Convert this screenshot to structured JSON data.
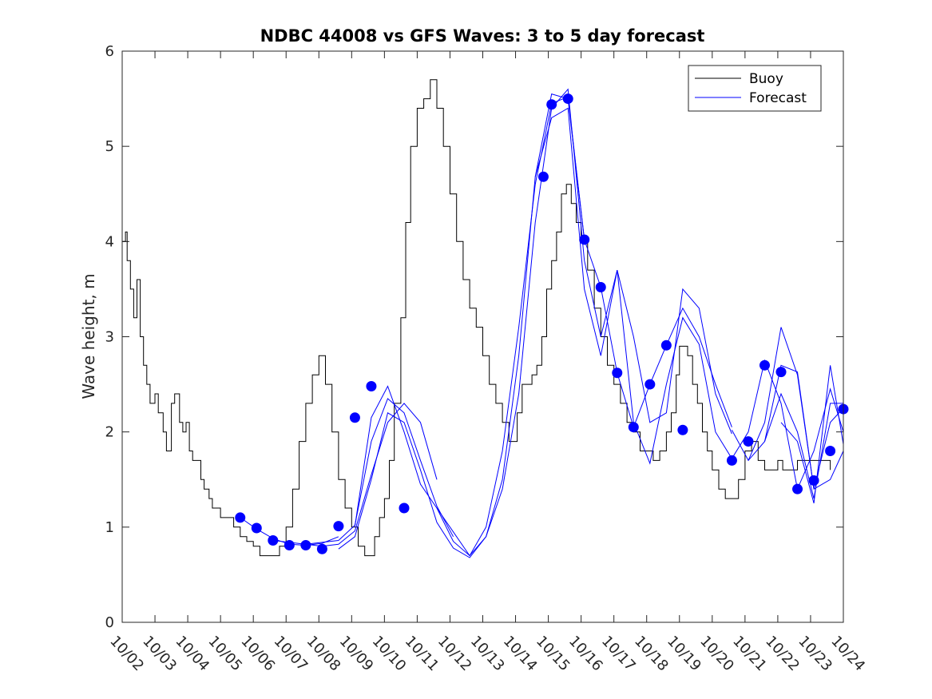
{
  "chart_data": {
    "type": "line",
    "title": "NDBC 44008 vs GFS Waves: 3 to 5 day forecast",
    "xlabel": "",
    "ylabel": "Wave height, m",
    "xlim": [
      0,
      22
    ],
    "ylim": [
      0,
      6
    ],
    "x_tick_labels": [
      "10/02",
      "10/03",
      "10/04",
      "10/05",
      "10/06",
      "10/07",
      "10/08",
      "10/09",
      "10/10",
      "10/11",
      "10/12",
      "10/13",
      "10/14",
      "10/15",
      "10/16",
      "10/17",
      "10/18",
      "10/19",
      "10/20",
      "10/21",
      "10/22",
      "10/23",
      "10/24"
    ],
    "y_ticks": [
      0,
      1,
      2,
      3,
      4,
      5,
      6
    ],
    "legend": {
      "position": "top-right",
      "entries": [
        "Buoy",
        "Forecast"
      ]
    },
    "colors": {
      "buoy": "#000000",
      "forecast": "#0000ff",
      "marker": "#0000ff"
    },
    "series": [
      {
        "name": "Buoy",
        "x": [
          0.0,
          0.1,
          0.15,
          0.25,
          0.35,
          0.45,
          0.55,
          0.65,
          0.75,
          0.85,
          1.0,
          1.1,
          1.25,
          1.35,
          1.5,
          1.6,
          1.75,
          1.85,
          1.95,
          2.05,
          2.15,
          2.25,
          2.4,
          2.5,
          2.65,
          2.75,
          2.85,
          3.0,
          3.2,
          3.4,
          3.6,
          3.8,
          4.0,
          4.2,
          4.4,
          4.6,
          4.8,
          5.0,
          5.2,
          5.4,
          5.6,
          5.8,
          6.0,
          6.2,
          6.4,
          6.6,
          6.8,
          7.0,
          7.2,
          7.4,
          7.6,
          7.7,
          7.85,
          8.0,
          8.15,
          8.3,
          8.5,
          8.65,
          8.8,
          9.0,
          9.2,
          9.4,
          9.6,
          9.8,
          10.0,
          10.2,
          10.4,
          10.6,
          10.8,
          11.0,
          11.2,
          11.4,
          11.6,
          11.8,
          11.95,
          12.05,
          12.2,
          12.35,
          12.5,
          12.65,
          12.8,
          12.95,
          13.1,
          13.25,
          13.4,
          13.55,
          13.7,
          13.85,
          14.0,
          14.2,
          14.4,
          14.6,
          14.8,
          15.0,
          15.2,
          15.4,
          15.6,
          15.8,
          16.0,
          16.2,
          16.4,
          16.6,
          16.75,
          16.9,
          17.0,
          17.1,
          17.25,
          17.4,
          17.55,
          17.7,
          17.85,
          18.0,
          18.2,
          18.4,
          18.6,
          18.8,
          19.0,
          19.2,
          19.4,
          19.6,
          19.8,
          20.0,
          20.15,
          20.3,
          20.45,
          20.6,
          20.8,
          21.0,
          21.2,
          21.4,
          21.6
        ],
        "y": [
          4.0,
          4.1,
          3.8,
          3.5,
          3.2,
          3.6,
          3.0,
          2.7,
          2.5,
          2.3,
          2.4,
          2.2,
          2.0,
          1.8,
          2.3,
          2.4,
          2.1,
          2.0,
          2.1,
          1.8,
          1.7,
          1.7,
          1.5,
          1.4,
          1.3,
          1.2,
          1.2,
          1.1,
          1.1,
          1.0,
          0.9,
          0.85,
          0.8,
          0.7,
          0.7,
          0.7,
          0.8,
          1.0,
          1.4,
          1.9,
          2.3,
          2.6,
          2.8,
          2.5,
          2.0,
          1.5,
          1.2,
          1.0,
          0.8,
          0.7,
          0.7,
          0.9,
          1.1,
          1.3,
          1.7,
          2.3,
          3.2,
          4.2,
          5.0,
          5.4,
          5.5,
          5.7,
          5.4,
          5.0,
          4.5,
          4.0,
          3.6,
          3.3,
          3.1,
          2.8,
          2.5,
          2.3,
          2.1,
          1.9,
          1.9,
          2.2,
          2.5,
          2.5,
          2.6,
          2.7,
          3.0,
          3.5,
          3.8,
          4.1,
          4.5,
          4.6,
          4.4,
          4.2,
          4.0,
          3.7,
          3.3,
          3.0,
          2.7,
          2.5,
          2.3,
          2.1,
          2.0,
          1.8,
          1.8,
          1.7,
          1.8,
          2.0,
          2.2,
          2.6,
          2.9,
          2.9,
          2.8,
          2.5,
          2.3,
          2.0,
          1.8,
          1.6,
          1.4,
          1.3,
          1.3,
          1.5,
          1.8,
          1.9,
          1.7,
          1.6,
          1.6,
          1.7,
          1.6,
          1.6,
          1.6,
          1.7,
          1.7,
          1.7,
          1.7,
          1.7,
          1.6
        ]
      },
      {
        "name": "Forecast",
        "x": [
          3.6,
          4.1,
          4.6,
          5.1,
          5.6,
          6.1,
          6.6
        ],
        "y": [
          1.1,
          0.98,
          0.88,
          0.82,
          0.81,
          0.83,
          0.9
        ]
      },
      {
        "name": "Forecast",
        "x": [
          4.6,
          5.1,
          5.6,
          6.1,
          6.6,
          7.1,
          7.6,
          8.1,
          8.6,
          9.1,
          9.6
        ],
        "y": [
          0.86,
          0.84,
          0.82,
          0.8,
          0.82,
          0.96,
          1.55,
          2.1,
          2.3,
          2.1,
          1.5
        ]
      },
      {
        "name": "Forecast",
        "x": [
          5.6,
          6.1,
          6.6,
          7.1,
          7.6,
          8.1,
          8.6,
          9.1,
          9.6,
          10.1
        ],
        "y": [
          0.82,
          0.84,
          0.86,
          1.02,
          1.9,
          2.35,
          2.2,
          1.7,
          1.22,
          0.9
        ]
      },
      {
        "name": "Forecast",
        "x": [
          6.6,
          7.1,
          7.6,
          8.1,
          8.6,
          9.1,
          9.6,
          10.1,
          10.6,
          11.1,
          11.6,
          12.1,
          12.6,
          13.1,
          13.6,
          14.1
        ],
        "y": [
          0.77,
          0.9,
          1.5,
          2.2,
          2.1,
          1.6,
          1.05,
          0.78,
          0.68,
          0.9,
          1.5,
          2.8,
          4.68,
          5.55,
          5.5,
          4.02
        ]
      },
      {
        "name": "Forecast",
        "x": [
          7.1,
          7.6,
          8.1,
          8.6,
          9.1,
          9.6,
          10.1,
          10.6,
          11.1,
          11.6,
          12.1,
          12.6,
          13.1,
          13.6,
          14.1,
          14.6,
          15.1,
          15.6,
          16.1,
          16.6,
          17.1,
          17.6,
          18.1,
          18.6
        ],
        "y": [
          1.01,
          2.15,
          2.48,
          2.0,
          1.45,
          1.2,
          0.95,
          0.7,
          1.0,
          1.8,
          3.1,
          4.6,
          5.45,
          5.52,
          4.02,
          3.52,
          2.62,
          2.05,
          2.5,
          2.91,
          3.3,
          3.0,
          2.5,
          2.05
        ]
      },
      {
        "name": "Forecast",
        "x": [
          9.6,
          10.1,
          10.6,
          11.1,
          11.6,
          12.1,
          12.6,
          13.1,
          13.6,
          14.1,
          14.6,
          15.1,
          15.6,
          16.1,
          16.6,
          17.1,
          17.6,
          18.1,
          18.6
        ],
        "y": [
          1.2,
          0.85,
          0.7,
          0.9,
          1.4,
          2.4,
          4.2,
          5.4,
          5.6,
          3.8,
          3.0,
          3.7,
          3.0,
          2.1,
          2.2,
          3.5,
          3.3,
          2.4,
          1.98
        ]
      },
      {
        "name": "Forecast",
        "x": [
          12.6,
          13.1,
          13.6,
          14.1,
          14.6,
          15.1,
          15.6,
          16.1,
          16.6,
          17.1,
          17.6,
          18.1,
          18.6,
          19.1,
          19.6,
          20.1,
          20.6,
          21.1,
          21.6,
          22.0
        ],
        "y": [
          4.68,
          5.3,
          5.4,
          3.5,
          2.8,
          3.7,
          2.1,
          1.67,
          2.5,
          3.2,
          2.92,
          2.0,
          1.72,
          2.0,
          2.75,
          2.3,
          1.4,
          1.8,
          2.45,
          2.0
        ]
      },
      {
        "name": "Forecast",
        "x": [
          18.6,
          19.1,
          19.6,
          20.1,
          20.6,
          21.1,
          21.6,
          22.0
        ],
        "y": [
          2.02,
          1.7,
          1.9,
          2.7,
          2.63,
          1.4,
          1.5,
          1.8
        ]
      },
      {
        "name": "Forecast",
        "x": [
          19.1,
          19.6,
          20.1,
          20.6,
          21.1,
          21.6,
          22.0
        ],
        "y": [
          1.7,
          2.1,
          3.1,
          2.6,
          1.4,
          2.1,
          2.25
        ]
      },
      {
        "name": "Forecast",
        "x": [
          19.6,
          20.1,
          20.6,
          21.1,
          21.6,
          22.0
        ],
        "y": [
          1.9,
          2.4,
          2.0,
          1.3,
          2.3,
          2.3
        ]
      },
      {
        "name": "Forecast",
        "x": [
          20.1,
          20.6,
          21.1,
          21.6,
          22.0
        ],
        "y": [
          2.1,
          1.9,
          1.25,
          2.7,
          1.87
        ]
      }
    ],
    "markers": {
      "name": "Forecast",
      "x": [
        3.6,
        4.1,
        4.6,
        5.1,
        5.6,
        6.1,
        6.6,
        7.1,
        7.6,
        8.6,
        12.85,
        13.1,
        13.6,
        14.1,
        14.6,
        15.1,
        15.6,
        16.1,
        16.6,
        17.1,
        18.6,
        19.1,
        19.6,
        20.1,
        20.6,
        21.1,
        21.6,
        22.0
      ],
      "y": [
        1.1,
        0.99,
        0.86,
        0.81,
        0.81,
        0.77,
        1.01,
        2.15,
        2.48,
        1.2,
        4.68,
        5.44,
        5.5,
        4.02,
        3.52,
        2.62,
        2.05,
        2.5,
        2.91,
        2.02,
        1.7,
        1.9,
        2.7,
        2.63,
        1.4,
        1.49,
        1.8,
        2.24
      ]
    }
  }
}
